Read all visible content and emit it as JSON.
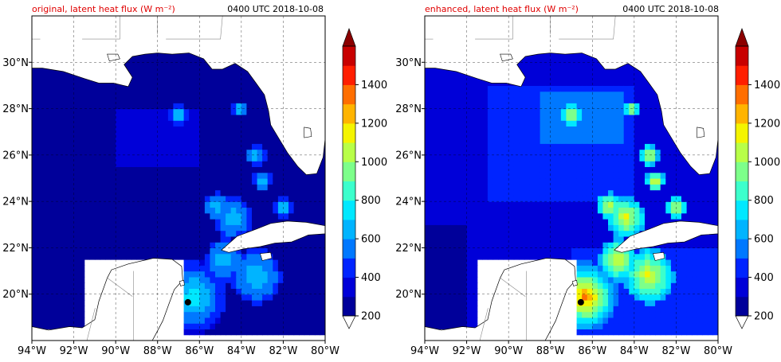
{
  "panels": [
    {
      "title_left": "original, latent heat flux (W m⁻²)",
      "title_right": "0400 UTC 2018-10-08",
      "enhanced": false
    },
    {
      "title_left": "enhanced, latent heat flux (W m⁻²)",
      "title_right": "0400 UTC 2018-10-08",
      "enhanced": true
    }
  ],
  "map": {
    "lon_range": [
      -94,
      -80
    ],
    "lat_range": [
      18,
      32
    ],
    "lon_ticks": [
      "94°W",
      "92°W",
      "90°W",
      "88°W",
      "86°W",
      "84°W",
      "82°W",
      "80°W"
    ],
    "lat_ticks": [
      "20°N",
      "22°N",
      "24°N",
      "26°N",
      "28°N",
      "30°N"
    ],
    "gridlines": "dashed"
  },
  "colorbar": {
    "ticks": [
      "200",
      "400",
      "600",
      "800",
      "1000",
      "1200",
      "1400"
    ],
    "levels": [
      200,
      300,
      400,
      500,
      600,
      700,
      800,
      900,
      1000,
      1100,
      1200,
      1300,
      1400,
      1500
    ],
    "colors": [
      "#00009a",
      "#0000d8",
      "#0024ff",
      "#0078ff",
      "#00b4ff",
      "#00e8ff",
      "#3cffcc",
      "#7dff8a",
      "#b8ff48",
      "#f4f400",
      "#ffb400",
      "#ff6e00",
      "#ff1e00",
      "#c80000"
    ],
    "extend": "both",
    "under_color": "#ffffff",
    "over_color": "#8b0000"
  }
}
